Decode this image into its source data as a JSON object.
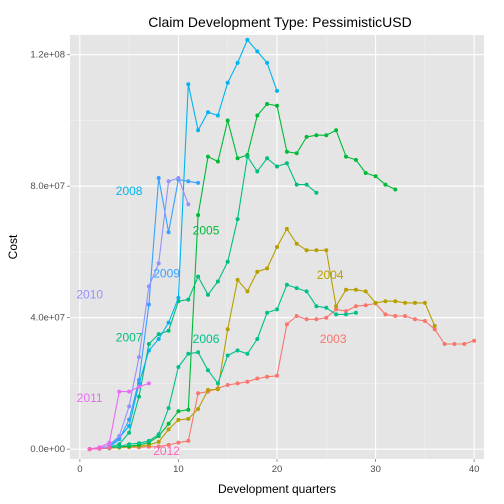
{
  "chart_data": {
    "type": "line",
    "title": "Claim Development  Type: PessimisticUSD",
    "xlabel": "Development quarters",
    "ylabel": "Cost",
    "xlim": [
      -1,
      41
    ],
    "ylim": [
      -3000000,
      126000000
    ],
    "x_ticks": [
      {
        "value": 0,
        "label": "0"
      },
      {
        "value": 10,
        "label": "10"
      },
      {
        "value": 20,
        "label": "20"
      },
      {
        "value": 30,
        "label": "30"
      },
      {
        "value": 40,
        "label": "40"
      }
    ],
    "y_ticks": [
      {
        "value": 0,
        "label": "0.0e+00"
      },
      {
        "value": 40000000,
        "label": "4.0e+07"
      },
      {
        "value": 80000000,
        "label": "8.0e+07"
      },
      {
        "value": 120000000,
        "label": "1.2e+08"
      }
    ],
    "grid": true,
    "legend": "none",
    "series": [
      {
        "name": "2003",
        "color": "#F8766D",
        "label_at": [
          25.7,
          33500000
        ],
        "x": [
          1,
          2,
          3,
          4,
          5,
          6,
          7,
          8,
          9,
          10,
          11,
          12,
          13,
          14,
          15,
          16,
          17,
          18,
          19,
          20,
          21,
          22,
          23,
          24,
          25,
          26,
          27,
          28,
          29,
          30,
          31,
          32,
          33,
          34,
          35,
          36,
          37,
          38,
          39,
          40
        ],
        "y": [
          0,
          200000,
          300000,
          500000,
          600000,
          600000,
          700000,
          800000,
          1300000,
          2000000,
          2500000,
          17000000,
          17500000,
          18500000,
          19500000,
          20000000,
          20500000,
          21500000,
          22000000,
          22300000,
          38000000,
          40500000,
          39500000,
          39500000,
          40000000,
          42500000,
          42000000,
          43500000,
          43800000,
          44300000,
          41000000,
          40500000,
          40500000,
          39500000,
          39000000,
          36500000,
          32000000,
          32000000,
          32000000,
          33000000
        ]
      },
      {
        "name": "2004",
        "color": "#B79F00",
        "label_at": [
          25.4,
          53000000
        ],
        "x": [
          1,
          2,
          3,
          4,
          5,
          6,
          7,
          8,
          9,
          10,
          11,
          12,
          13,
          14,
          15,
          16,
          17,
          18,
          19,
          20,
          21,
          22,
          23,
          24,
          25,
          26,
          27,
          28,
          29,
          30,
          31,
          32,
          33,
          34,
          35,
          36
        ],
        "y": [
          0,
          200000,
          300000,
          500000,
          700000,
          900000,
          1300000,
          2200000,
          6000000,
          8900000,
          9200000,
          12200000,
          18000000,
          18200000,
          36500000,
          51500000,
          48000000,
          54000000,
          55000000,
          61500000,
          67000000,
          62500000,
          60500000,
          60500000,
          60500000,
          43500000,
          48500000,
          48500000,
          48000000,
          44500000,
          45000000,
          45000000,
          44500000,
          44500000,
          44500000,
          37500000
        ]
      },
      {
        "name": "2005",
        "color": "#00BA38",
        "label_at": [
          12.8,
          66500000
        ],
        "x": [
          1,
          2,
          3,
          4,
          5,
          6,
          7,
          8,
          9,
          10,
          11,
          12,
          13,
          14,
          15,
          16,
          17,
          18,
          19,
          20,
          21,
          22,
          23,
          24,
          25,
          26,
          27,
          28,
          29,
          30,
          31,
          32
        ],
        "y": [
          0,
          200000,
          500000,
          700000,
          900000,
          1300000,
          2000000,
          4000000,
          7700000,
          11500000,
          12000000,
          71200000,
          89000000,
          87500000,
          100000000,
          88500000,
          89500000,
          101500000,
          105000000,
          104500000,
          90500000,
          90000000,
          95000000,
          95500000,
          95500000,
          97000000,
          89000000,
          88000000,
          84000000,
          83000000,
          80500000,
          79000000
        ]
      },
      {
        "name": "2006",
        "color": "#00C08B",
        "label_at": [
          12.8,
          33500000
        ],
        "x": [
          1,
          2,
          3,
          4,
          5,
          6,
          7,
          8,
          9,
          10,
          11,
          12,
          13,
          14,
          15,
          16,
          17,
          18,
          19,
          20,
          21,
          22,
          23,
          24,
          25,
          26,
          27,
          28
        ],
        "y": [
          0,
          200000,
          500000,
          800000,
          1500000,
          1800000,
          2500000,
          4500000,
          12500000,
          25000000,
          29000000,
          29500000,
          24000000,
          20000000,
          28500000,
          30000000,
          29000000,
          33500000,
          41500000,
          42500000,
          50000000,
          49000000,
          48000000,
          43500000,
          43000000,
          41000000,
          41000000,
          41500000
        ]
      },
      {
        "name": "2007",
        "color": "#00BF7D",
        "label_at": [
          5,
          34000000
        ],
        "x": [
          3,
          4,
          5,
          6,
          7,
          8,
          9,
          10,
          11,
          12,
          13,
          14,
          15,
          16,
          17,
          18,
          19,
          20,
          21,
          22,
          23,
          24
        ],
        "y": [
          500000,
          1500000,
          5000000,
          16000000,
          32000000,
          35000000,
          36000000,
          45000000,
          45500000,
          52500000,
          47000000,
          51000000,
          57000000,
          70000000,
          89000000,
          84500000,
          88500000,
          86000000,
          87000000,
          80500000,
          80500000,
          78000000
        ]
      },
      {
        "name": "2008",
        "color": "#00B4EF",
        "label_at": [
          5,
          78500000
        ],
        "x": [
          3,
          4,
          5,
          6,
          7,
          8,
          9,
          10,
          11,
          12,
          13,
          14,
          15,
          16,
          17,
          18,
          19,
          20
        ],
        "y": [
          1000000,
          3500000,
          7000000,
          20000000,
          30000000,
          33500000,
          38500000,
          46000000,
          111000000,
          97000000,
          102500000,
          101500000,
          111500000,
          117500000,
          124500000,
          121000000,
          117500000,
          109000000
        ]
      },
      {
        "name": "2009",
        "color": "#35A2FF",
        "label_at": [
          8.8,
          53500000
        ],
        "x": [
          2,
          3,
          4,
          5,
          6,
          7,
          8,
          9,
          10,
          11,
          12
        ],
        "y": [
          200000,
          500000,
          3000000,
          9000000,
          21000000,
          44000000,
          82500000,
          66000000,
          82000000,
          81500000,
          81000000
        ]
      },
      {
        "name": "2010",
        "color": "#9590FF",
        "label_at": [
          1,
          47000000
        ],
        "x": [
          2,
          3,
          4,
          5,
          6,
          7,
          8,
          9,
          10,
          11
        ],
        "y": [
          300000,
          1300000,
          4000000,
          13000000,
          28000000,
          49500000,
          56500000,
          81500000,
          82500000,
          74500000
        ]
      },
      {
        "name": "2011",
        "color": "#E76BF3",
        "label_at": [
          1,
          15500000
        ],
        "x": [
          1,
          2,
          3,
          4,
          5,
          6,
          7
        ],
        "y": [
          0,
          600000,
          2000000,
          17500000,
          17500000,
          19000000,
          20000000
        ]
      },
      {
        "name": "2012",
        "color": "#FF62BC",
        "label_at": [
          8.8,
          -500000
        ],
        "x": [
          1,
          2,
          3
        ],
        "y": [
          0,
          100000,
          500000
        ]
      }
    ]
  }
}
